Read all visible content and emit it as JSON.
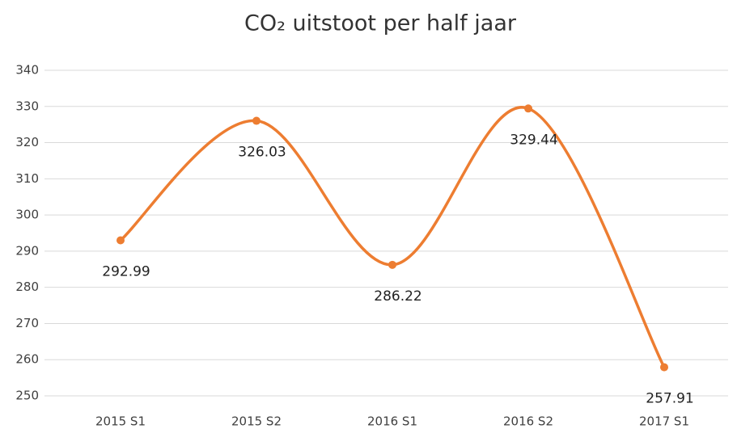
{
  "chart_data": {
    "type": "line",
    "title": "CO₂ uitstoot per half jaar",
    "categories": [
      "2015 S1",
      "2015 S2",
      "2016 S1",
      "2016 S2",
      "2017 S1"
    ],
    "series": [
      {
        "name": "CO₂ uitstoot",
        "color": "#ed7d31",
        "values": [
          292.99,
          326.03,
          286.22,
          329.44,
          257.91
        ]
      }
    ],
    "ylim": [
      250,
      340
    ],
    "yticks": [
      250,
      260,
      270,
      280,
      290,
      300,
      310,
      320,
      330,
      340
    ],
    "grid": true,
    "smooth": true,
    "legend": false,
    "data_labels": true
  }
}
